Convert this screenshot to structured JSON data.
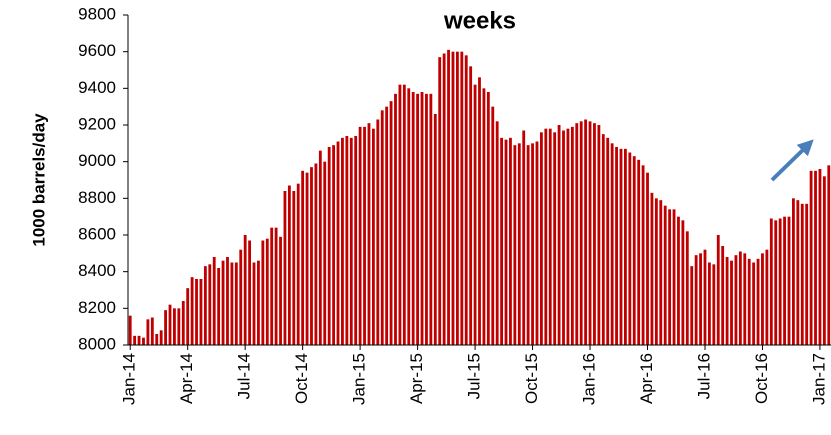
{
  "chart_data": {
    "type": "bar",
    "title": "weeks",
    "y_label": "1000 barrels/day",
    "color": "#c00000",
    "categories": [
      "Jan-14",
      null,
      null,
      null,
      null,
      null,
      null,
      null,
      null,
      null,
      null,
      null,
      null,
      "Apr-14",
      null,
      null,
      null,
      null,
      null,
      null,
      null,
      null,
      null,
      null,
      null,
      null,
      "Jul-14",
      null,
      null,
      null,
      null,
      null,
      null,
      null,
      null,
      null,
      null,
      null,
      null,
      "Oct-14",
      null,
      null,
      null,
      null,
      null,
      null,
      null,
      null,
      null,
      null,
      null,
      null,
      "Jan-15",
      null,
      null,
      null,
      null,
      null,
      null,
      null,
      null,
      null,
      null,
      null,
      null,
      "Apr-15",
      null,
      null,
      null,
      null,
      null,
      null,
      null,
      null,
      null,
      null,
      null,
      null,
      "Jul-15",
      null,
      null,
      null,
      null,
      null,
      null,
      null,
      null,
      null,
      null,
      null,
      null,
      "Oct-15",
      null,
      null,
      null,
      null,
      null,
      null,
      null,
      null,
      null,
      null,
      null,
      null,
      "Jan-16",
      null,
      null,
      null,
      null,
      null,
      null,
      null,
      null,
      null,
      null,
      null,
      null,
      "Apr-16",
      null,
      null,
      null,
      null,
      null,
      null,
      null,
      null,
      null,
      null,
      null,
      null,
      "Jul-16",
      null,
      null,
      null,
      null,
      null,
      null,
      null,
      null,
      null,
      null,
      null,
      null,
      "Oct-16",
      null,
      null,
      null,
      null,
      null,
      null,
      null,
      null,
      null,
      null,
      null,
      null,
      "Jan-17",
      null,
      null
    ],
    "values": [
      8160,
      8050,
      8050,
      8040,
      8140,
      8150,
      8060,
      8080,
      8190,
      8220,
      8200,
      8200,
      8240,
      8310,
      8370,
      8360,
      8360,
      8430,
      8440,
      8480,
      8420,
      8460,
      8480,
      8450,
      8450,
      8520,
      8600,
      8570,
      8450,
      8460,
      8570,
      8580,
      8640,
      8640,
      8590,
      8840,
      8870,
      8840,
      8880,
      8950,
      8940,
      8970,
      8990,
      9060,
      9000,
      9080,
      9090,
      9110,
      9130,
      9140,
      9130,
      9140,
      9190,
      9190,
      9210,
      9180,
      9230,
      9280,
      9300,
      9330,
      9370,
      9420,
      9420,
      9400,
      9380,
      9370,
      9380,
      9370,
      9370,
      9260,
      9570,
      9590,
      9610,
      9600,
      9600,
      9600,
      9580,
      9520,
      9420,
      9460,
      9400,
      9380,
      9300,
      9220,
      9130,
      9120,
      9130,
      9090,
      9100,
      9170,
      9090,
      9100,
      9110,
      9160,
      9180,
      9180,
      9160,
      9200,
      9170,
      9180,
      9190,
      9210,
      9220,
      9230,
      9220,
      9210,
      9200,
      9150,
      9130,
      9100,
      9080,
      9070,
      9070,
      9050,
      9030,
      9010,
      8980,
      8940,
      8830,
      8800,
      8790,
      8760,
      8740,
      8740,
      8700,
      8680,
      8620,
      8430,
      8490,
      8500,
      8520,
      8450,
      8440,
      8600,
      8540,
      8480,
      8460,
      8490,
      8510,
      8500,
      8470,
      8450,
      8470,
      8500,
      8520,
      8690,
      8680,
      8690,
      8700,
      8700,
      8800,
      8790,
      8770,
      8770,
      8950,
      8950,
      8960,
      8920,
      8980
    ],
    "ylim": [
      8000,
      9800
    ],
    "yticks": [
      8000,
      8200,
      8400,
      8600,
      8800,
      9000,
      9200,
      9400,
      9600,
      9800
    ]
  }
}
